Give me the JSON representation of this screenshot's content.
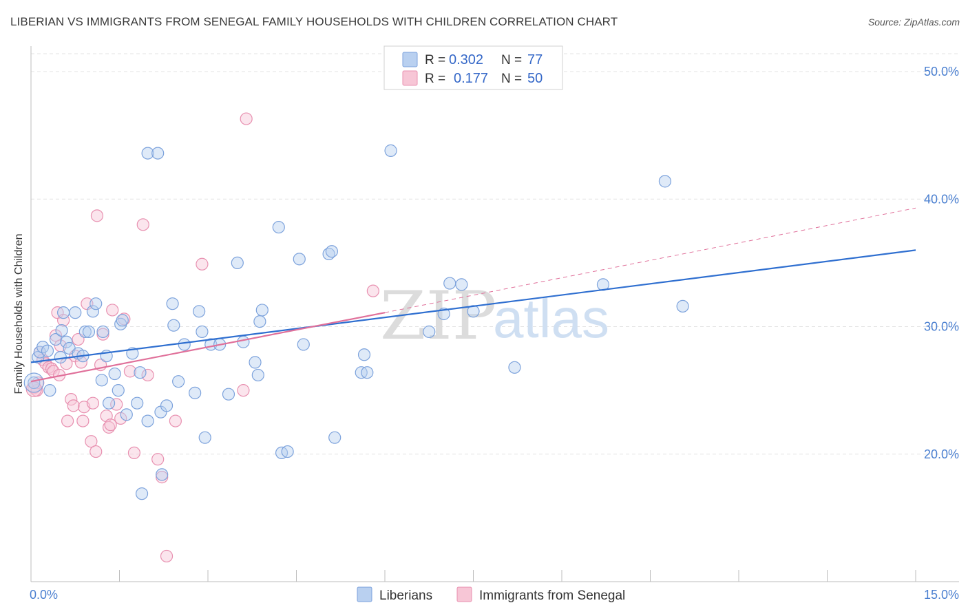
{
  "chart_data": {
    "type": "scatter",
    "title": "LIBERIAN VS IMMIGRANTS FROM SENEGAL FAMILY HOUSEHOLDS WITH CHILDREN CORRELATION CHART",
    "source": "Source: ZipAtlas.com",
    "ylabel": "Family Households with Children",
    "xlabel": "",
    "xlim": [
      0,
      15
    ],
    "ylim": [
      10,
      52
    ],
    "x_tick_labels": [
      "0.0%",
      "15.0%"
    ],
    "y_ticks": [
      20,
      30,
      40,
      50
    ],
    "y_tick_labels": [
      "20.0%",
      "30.0%",
      "40.0%",
      "50.0%"
    ],
    "grid": true,
    "legend": {
      "placement": "top-center",
      "rows": [
        {
          "r_label": "R =",
          "r_value": "0.302",
          "n_label": "N =",
          "n_value": "77"
        },
        {
          "r_label": "R =",
          "r_value": "0.177",
          "n_label": "N =",
          "n_value": "50"
        }
      ]
    },
    "watermark": {
      "zip": "ZIP",
      "atlas": "atlas"
    },
    "colors": {
      "liberians_fill": "#b9d0f0",
      "liberians_stroke": "#7ca2dc",
      "liberians_line": "#2f6fd0",
      "senegal_fill": "#f7c6d6",
      "senegal_stroke": "#e890b0",
      "senegal_line": "#e0709a",
      "tick_label": "#4a7fd0",
      "grid": "#e3e3e3"
    },
    "series": [
      {
        "name": "Liberians",
        "trend": {
          "x": [
            0,
            15
          ],
          "y": [
            27.2,
            36.0
          ],
          "style": "solid"
        },
        "points": [
          [
            0.05,
            25.6
          ],
          [
            0.12,
            27.6
          ],
          [
            0.15,
            28.0
          ],
          [
            0.2,
            28.4
          ],
          [
            0.28,
            28.1
          ],
          [
            0.32,
            25.0
          ],
          [
            0.42,
            29.0
          ],
          [
            0.5,
            27.6
          ],
          [
            0.52,
            29.7
          ],
          [
            0.55,
            31.1
          ],
          [
            0.6,
            28.8
          ],
          [
            0.65,
            28.3
          ],
          [
            0.75,
            31.1
          ],
          [
            0.8,
            27.9
          ],
          [
            0.88,
            27.7
          ],
          [
            0.92,
            29.6
          ],
          [
            0.98,
            29.6
          ],
          [
            1.05,
            31.2
          ],
          [
            1.1,
            31.8
          ],
          [
            1.2,
            25.8
          ],
          [
            1.22,
            29.6
          ],
          [
            1.28,
            27.7
          ],
          [
            1.32,
            24.0
          ],
          [
            1.42,
            26.3
          ],
          [
            1.48,
            25.0
          ],
          [
            1.52,
            30.2
          ],
          [
            1.55,
            30.5
          ],
          [
            1.62,
            23.1
          ],
          [
            1.72,
            27.9
          ],
          [
            1.8,
            24.0
          ],
          [
            1.85,
            26.4
          ],
          [
            1.88,
            16.9
          ],
          [
            1.98,
            22.6
          ],
          [
            1.98,
            43.6
          ],
          [
            2.15,
            43.6
          ],
          [
            2.2,
            23.3
          ],
          [
            2.22,
            18.4
          ],
          [
            2.3,
            23.8
          ],
          [
            2.4,
            31.8
          ],
          [
            2.42,
            30.1
          ],
          [
            2.5,
            25.7
          ],
          [
            2.6,
            28.6
          ],
          [
            2.78,
            24.8
          ],
          [
            2.85,
            31.2
          ],
          [
            2.9,
            29.6
          ],
          [
            2.95,
            21.3
          ],
          [
            3.05,
            28.6
          ],
          [
            3.2,
            28.6
          ],
          [
            3.35,
            24.7
          ],
          [
            3.5,
            35.0
          ],
          [
            3.6,
            28.8
          ],
          [
            3.8,
            27.2
          ],
          [
            3.85,
            26.2
          ],
          [
            3.88,
            30.4
          ],
          [
            3.92,
            31.3
          ],
          [
            4.2,
            37.8
          ],
          [
            4.25,
            20.1
          ],
          [
            4.35,
            20.2
          ],
          [
            4.55,
            35.3
          ],
          [
            4.62,
            28.6
          ],
          [
            5.05,
            35.7
          ],
          [
            5.1,
            35.9
          ],
          [
            5.15,
            21.3
          ],
          [
            5.6,
            26.4
          ],
          [
            5.65,
            27.8
          ],
          [
            5.7,
            26.4
          ],
          [
            6.1,
            43.8
          ],
          [
            6.75,
            29.6
          ],
          [
            7.0,
            31.0
          ],
          [
            7.1,
            33.4
          ],
          [
            7.3,
            33.3
          ],
          [
            7.5,
            31.2
          ],
          [
            8.2,
            26.8
          ],
          [
            9.7,
            33.3
          ],
          [
            10.75,
            41.4
          ],
          [
            11.05,
            31.6
          ]
        ]
      },
      {
        "name": "Immigrants from Senegal",
        "trend": {
          "x": [
            0,
            6.0
          ],
          "y": [
            25.7,
            31.1
          ],
          "style": "solid"
        },
        "trend_extension": {
          "x": [
            6.0,
            15
          ],
          "y": [
            31.1,
            39.3
          ],
          "style": "dashed"
        },
        "points": [
          [
            0.05,
            25.2
          ],
          [
            0.1,
            25.0
          ],
          [
            0.12,
            25.6
          ],
          [
            0.15,
            28.0
          ],
          [
            0.2,
            27.4
          ],
          [
            0.25,
            27.1
          ],
          [
            0.3,
            26.8
          ],
          [
            0.35,
            26.7
          ],
          [
            0.38,
            26.5
          ],
          [
            0.42,
            29.3
          ],
          [
            0.45,
            31.1
          ],
          [
            0.48,
            26.2
          ],
          [
            0.5,
            28.5
          ],
          [
            0.55,
            30.5
          ],
          [
            0.6,
            27.1
          ],
          [
            0.62,
            22.6
          ],
          [
            0.68,
            24.3
          ],
          [
            0.72,
            23.8
          ],
          [
            0.75,
            27.7
          ],
          [
            0.8,
            29.0
          ],
          [
            0.85,
            27.2
          ],
          [
            0.88,
            22.6
          ],
          [
            0.9,
            23.7
          ],
          [
            0.95,
            31.8
          ],
          [
            1.02,
            21.0
          ],
          [
            1.05,
            24.0
          ],
          [
            1.1,
            20.2
          ],
          [
            1.12,
            38.7
          ],
          [
            1.18,
            27.0
          ],
          [
            1.22,
            29.4
          ],
          [
            1.28,
            23.0
          ],
          [
            1.32,
            22.1
          ],
          [
            1.35,
            22.3
          ],
          [
            1.38,
            31.3
          ],
          [
            1.45,
            23.9
          ],
          [
            1.52,
            22.8
          ],
          [
            1.58,
            30.6
          ],
          [
            1.68,
            26.5
          ],
          [
            1.75,
            20.1
          ],
          [
            1.9,
            38.0
          ],
          [
            1.98,
            26.2
          ],
          [
            2.15,
            19.6
          ],
          [
            2.22,
            18.2
          ],
          [
            2.3,
            12.0
          ],
          [
            2.45,
            22.6
          ],
          [
            2.9,
            34.9
          ],
          [
            3.6,
            25.0
          ],
          [
            3.65,
            46.3
          ],
          [
            5.8,
            32.8
          ]
        ]
      }
    ]
  }
}
